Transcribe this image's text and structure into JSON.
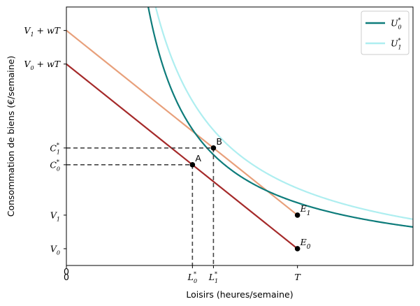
{
  "chart_data": {
    "type": "line",
    "xlabel": "Loisirs (heures/semaine)",
    "ylabel": "Consommation de biens (€/semaine)",
    "xlim": [
      0,
      165
    ],
    "ylim": [
      -5,
      72
    ],
    "params": {
      "T": 110,
      "w": 0.5,
      "V0": 0,
      "V1": 10
    },
    "budget_lines": [
      {
        "name": "budget-0",
        "color": "#a52a2a",
        "points": [
          [
            0,
            55
          ],
          [
            110,
            0
          ]
        ]
      },
      {
        "name": "budget-1",
        "color": "#e8a07b",
        "points": [
          [
            0,
            65
          ],
          [
            110,
            10
          ]
        ]
      }
    ],
    "indifference_curves": [
      {
        "name": "U_0^*",
        "label_base": "U",
        "label_sub": "0",
        "label_sup": "*",
        "color": "#0e7c7b",
        "k": 1870,
        "a": 15,
        "b": -6
      },
      {
        "name": "U_1^*",
        "label_base": "U",
        "label_sub": "1",
        "label_sup": "*",
        "color": "#aeeef0",
        "k": 2600,
        "a": 10,
        "b": -8
      }
    ],
    "points": [
      {
        "label": "A",
        "x": 60,
        "y": 25
      },
      {
        "label": "B",
        "x": 70,
        "y": 30
      },
      {
        "label": "E",
        "sub": "1",
        "x": 110,
        "y": 10
      },
      {
        "label": "E",
        "sub": "0",
        "x": 110,
        "y": 0
      }
    ],
    "x_ticks": [
      {
        "value": 0,
        "base": "0",
        "sub": "",
        "sup": ""
      },
      {
        "value": 60,
        "base": "L",
        "sub": "0",
        "sup": "*"
      },
      {
        "value": 70,
        "base": "L",
        "sub": "1",
        "sup": "*"
      },
      {
        "value": 110,
        "base": "T",
        "sub": "",
        "sup": ""
      }
    ],
    "y_ticks": [
      {
        "value": 65,
        "base": "V",
        "sub": "1",
        "rest": " + wT"
      },
      {
        "value": 55,
        "base": "V",
        "sub": "0",
        "rest": " + wT"
      },
      {
        "value": 30,
        "base": "C",
        "sub": "1",
        "sup": "*"
      },
      {
        "value": 25,
        "base": "C",
        "sub": "0",
        "sup": "*"
      },
      {
        "value": 10,
        "base": "V",
        "sub": "1"
      },
      {
        "value": 0,
        "base": "V",
        "sub": "0"
      }
    ],
    "extra_x_label": "0",
    "legend": "top-right",
    "grid": false
  }
}
